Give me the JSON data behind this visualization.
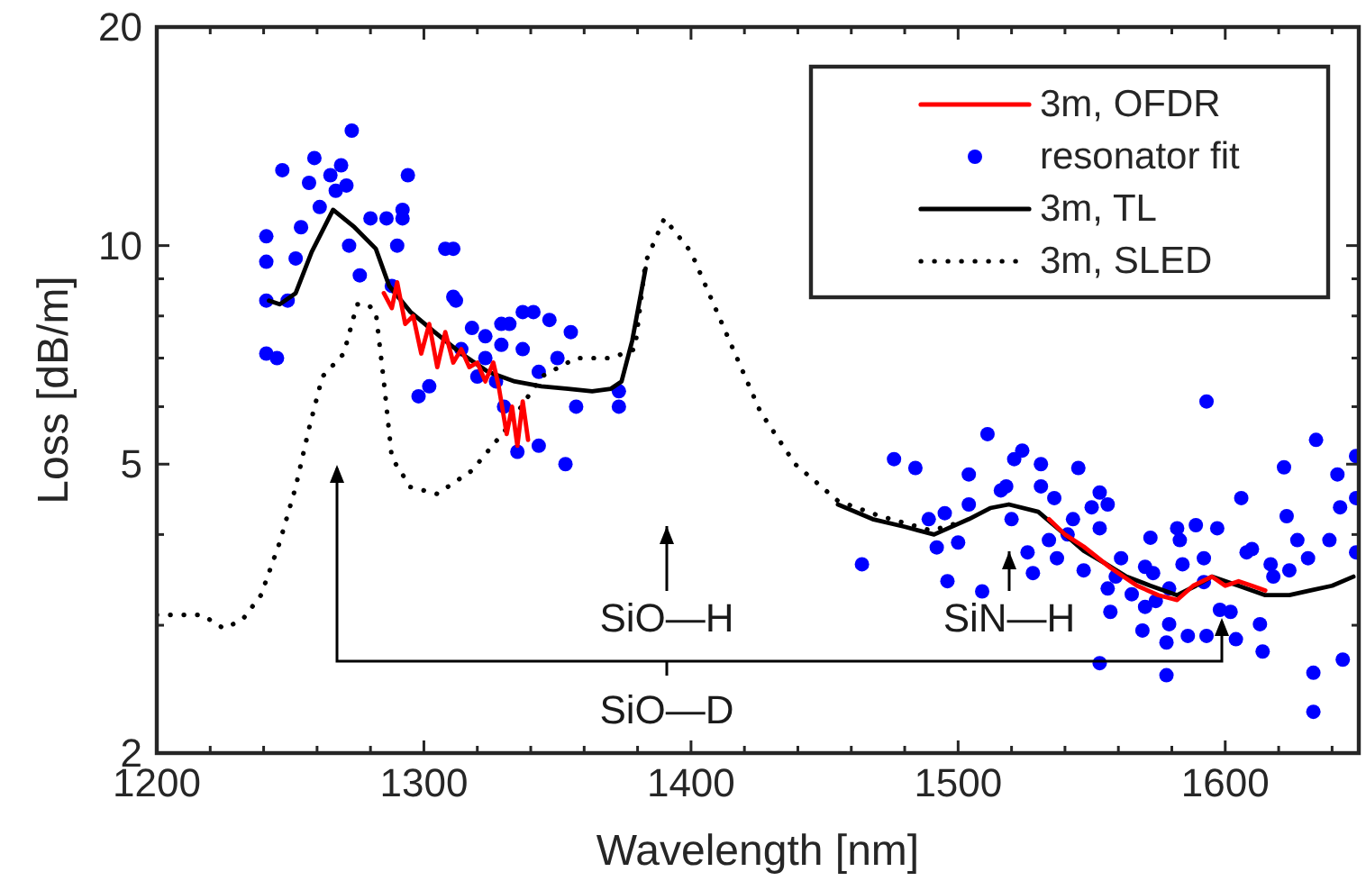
{
  "chart_data": {
    "type": "line",
    "xlabel": "Wavelength [nm]",
    "ylabel": "Loss [dB/m]",
    "log": "y",
    "legend": "top right",
    "xlim": [
      1200,
      1650
    ],
    "xticks": [
      1200,
      {
        "value": 1220,
        "label": null
      },
      {
        "value": 1240,
        "label": null
      },
      {
        "value": 1260,
        "label": null
      },
      {
        "value": 1280,
        "label": null
      },
      1300,
      {
        "value": 1320,
        "label": null
      },
      {
        "value": 1340,
        "label": null
      },
      {
        "value": 1360,
        "label": null
      },
      {
        "value": 1380,
        "label": null
      },
      1400,
      {
        "value": 1420,
        "label": null
      },
      {
        "value": 1440,
        "label": null
      },
      {
        "value": 1460,
        "label": null
      },
      {
        "value": 1480,
        "label": null
      },
      1500,
      {
        "value": 1520,
        "label": null
      },
      {
        "value": 1540,
        "label": null
      },
      {
        "value": 1560,
        "label": null
      },
      {
        "value": 1580,
        "label": null
      },
      1600,
      {
        "value": 1620,
        "label": null
      },
      {
        "value": 1640,
        "label": null
      }
    ],
    "ylim": [
      2,
      20
    ],
    "yticks": [
      2,
      {
        "value": 3,
        "label": null
      },
      {
        "value": 4,
        "label": null
      },
      5,
      {
        "value": 6,
        "label": null
      },
      {
        "value": 7,
        "label": null
      },
      {
        "value": 8,
        "label": null
      },
      {
        "value": 9,
        "label": null
      },
      10,
      20
    ],
    "series": [
      {
        "name": "3m, OFDR",
        "color": "#ff0000",
        "line_style": "solid",
        "x": [
          1285,
          1288,
          1290,
          1293,
          1296,
          1299,
          1302,
          1305,
          1308,
          1311,
          1314,
          1317,
          1320,
          1323,
          1326,
          1328,
          1331,
          1333,
          1335,
          1337,
          1339,
          null,
          1534,
          1540,
          1547,
          1557,
          1567,
          1575,
          1582,
          1588,
          1595,
          1600,
          1605,
          1610,
          1615
        ],
        "values": [
          8.6,
          8.2,
          8.9,
          7.8,
          8.0,
          7.1,
          7.8,
          6.8,
          7.6,
          6.9,
          7.2,
          6.8,
          6.9,
          6.5,
          6.9,
          6.4,
          5.5,
          6.0,
          5.3,
          6.1,
          5.4,
          null,
          4.2,
          4.0,
          3.85,
          3.6,
          3.4,
          3.3,
          3.25,
          3.4,
          3.5,
          3.4,
          3.45,
          3.4,
          3.35
        ]
      },
      {
        "name": "resonator fit",
        "type": "scatter",
        "color": "#0000ff",
        "marker": "circle",
        "x": [
          1241,
          1241,
          1241,
          1241,
          1245,
          1247,
          1249,
          1252,
          1254,
          1257,
          1259,
          1261,
          1265,
          1267,
          1269,
          1271,
          1272,
          1273,
          1276,
          1280,
          1286,
          1290,
          1292,
          1292,
          1294,
          1288,
          1298,
          1302,
          1308,
          1311,
          1311,
          1312,
          1314,
          1318,
          1320,
          1323,
          1323,
          1329,
          1329,
          1332,
          1330,
          1337,
          1341,
          1343,
          1347,
          1350,
          1355,
          1357,
          1335,
          1343,
          1353,
          1373,
          1373,
          1337,
          1327,
          1464,
          1476,
          1484,
          1489,
          1492,
          1495,
          1496,
          1500,
          1504,
          1504,
          1509,
          1511,
          1516,
          1521,
          1520,
          1524,
          1518,
          1526,
          1528,
          1531,
          1531,
          1534,
          1536,
          1537,
          1541,
          1543,
          1545,
          1547,
          1550,
          1553,
          1553,
          1556,
          1556,
          1557,
          1561,
          1565,
          1569,
          1570,
          1572,
          1573,
          1574,
          1578,
          1579,
          1579,
          1582,
          1584,
          1586,
          1589,
          1592,
          1592,
          1593,
          1597,
          1598,
          1602,
          1604,
          1606,
          1608,
          1610,
          1613,
          1614,
          1617,
          1618,
          1623,
          1624,
          1627,
          1631,
          1634,
          1633,
          1633,
          1639,
          1642,
          1643,
          1644,
          1649,
          1649,
          1649,
          1593,
          1553,
          1578,
          1583,
          1570,
          1559,
          1622
        ],
        "values": [
          10.3,
          9.5,
          8.4,
          7.1,
          7.0,
          12.7,
          8.4,
          9.6,
          10.6,
          12.2,
          13.2,
          11.3,
          12.5,
          11.9,
          12.9,
          12.1,
          10.0,
          14.4,
          9.1,
          10.9,
          10.9,
          10.0,
          11.2,
          10.9,
          12.5,
          8.8,
          6.2,
          6.4,
          9.9,
          9.9,
          8.5,
          8.4,
          7.2,
          7.7,
          6.6,
          7.5,
          7.0,
          7.3,
          7.8,
          7.8,
          6.0,
          8.1,
          8.1,
          6.7,
          7.9,
          7.0,
          7.6,
          6.0,
          5.2,
          5.3,
          5.0,
          6.3,
          6.0,
          7.2,
          6.5,
          3.64,
          5.08,
          4.94,
          4.2,
          3.84,
          4.28,
          3.45,
          3.9,
          4.84,
          4.4,
          3.34,
          5.5,
          4.6,
          5.08,
          4.2,
          5.22,
          4.66,
          3.78,
          3.54,
          5.0,
          4.66,
          3.93,
          4.49,
          3.71,
          4.0,
          4.2,
          4.94,
          3.57,
          4.36,
          4.57,
          4.08,
          4.4,
          3.37,
          3.13,
          3.71,
          3.31,
          2.95,
          3.18,
          3.96,
          3.54,
          3.24,
          2.84,
          3.01,
          3.37,
          4.08,
          3.64,
          2.9,
          4.12,
          3.71,
          3.44,
          2.9,
          4.08,
          3.15,
          3.13,
          2.87,
          4.49,
          3.78,
          3.82,
          3.01,
          2.76,
          3.64,
          3.5,
          4.24,
          3.57,
          3.93,
          3.71,
          5.4,
          2.58,
          2.28,
          3.93,
          4.84,
          4.36,
          2.69,
          4.49,
          5.13,
          3.78,
          6.1,
          2.66,
          2.56,
          3.93,
          3.61,
          3.5,
          4.95
        ]
      },
      {
        "name": "3m, TL",
        "color": "#000000",
        "line_style": "solid",
        "x": [
          1242,
          1246,
          1252,
          1258,
          1266,
          1274,
          1282,
          1287,
          1295,
          1304,
          1314,
          1324,
          1334,
          1344,
          1354,
          1363,
          1370,
          1374,
          1378,
          1383,
          null,
          1455,
          1468,
          1480,
          1491,
          1504,
          1512,
          1519,
          1530,
          1540,
          1547,
          1555,
          1563,
          1572,
          1582,
          1589,
          1595,
          1605,
          1615,
          1624,
          1632,
          1640,
          1648
        ],
        "values": [
          8.4,
          8.3,
          8.6,
          9.8,
          11.2,
          10.6,
          9.9,
          8.8,
          8.1,
          7.6,
          7.1,
          6.7,
          6.5,
          6.4,
          6.35,
          6.3,
          6.35,
          6.5,
          7.4,
          9.3,
          null,
          4.4,
          4.2,
          4.1,
          4.0,
          4.2,
          4.35,
          4.4,
          4.3,
          4.0,
          3.8,
          3.65,
          3.5,
          3.4,
          3.3,
          3.4,
          3.5,
          3.4,
          3.3,
          3.3,
          3.35,
          3.4,
          3.5
        ]
      },
      {
        "name": "3m, SLED",
        "color": "#000000",
        "line_style": "dotted",
        "x": [
          1200,
          1210,
          1217,
          1225,
          1232,
          1239,
          1246,
          1252,
          1257,
          1262,
          1270,
          1275,
          1279,
          1282,
          1285,
          1288,
          1295,
          1305,
          1318,
          1331,
          1344,
          1357,
          1370,
          1379,
          1383,
          1390,
          1400,
          1413,
          1426,
          1439,
          1455,
          1470,
          1490,
          1500
        ],
        "values": [
          3.1,
          3.1,
          3.1,
          2.97,
          3.05,
          3.3,
          3.9,
          4.65,
          5.6,
          6.6,
          7.1,
          8.3,
          8.3,
          8.1,
          6.5,
          5.1,
          4.65,
          4.55,
          4.9,
          5.6,
          6.6,
          7.0,
          7.0,
          7.2,
          9.5,
          10.9,
          9.8,
          7.6,
          5.9,
          5.0,
          4.45,
          4.25,
          4.05,
          4.15
        ]
      }
    ],
    "annotations": [
      "SiO—H",
      "SiN—H",
      "SiO—D"
    ]
  }
}
